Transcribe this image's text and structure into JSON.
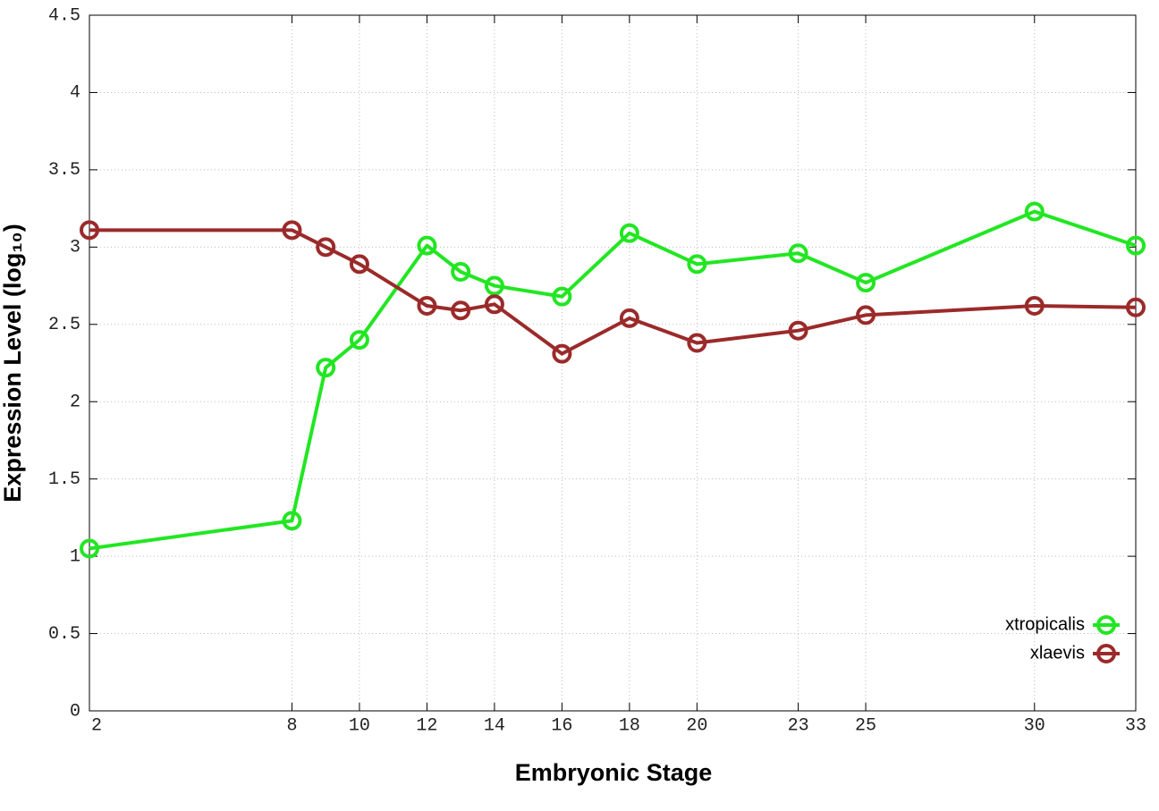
{
  "chart_data": {
    "type": "line",
    "x_label": "Embryonic Stage",
    "y_label": "Expression Level (log₁₀)",
    "x": [
      2,
      8,
      9,
      10,
      12,
      13,
      14,
      16,
      18,
      20,
      23,
      25,
      30,
      33
    ],
    "series": [
      {
        "name": "xtropicalis",
        "color": "#22e622",
        "values": [
          1.05,
          1.23,
          2.22,
          2.4,
          3.01,
          2.84,
          2.75,
          2.68,
          3.09,
          2.89,
          2.96,
          2.77,
          3.23,
          3.01
        ]
      },
      {
        "name": "xlaevis",
        "color": "#9b2a2a",
        "values": [
          3.11,
          3.11,
          3.0,
          2.89,
          2.62,
          2.59,
          2.63,
          2.31,
          2.54,
          2.38,
          2.46,
          2.56,
          2.62,
          2.61
        ]
      }
    ],
    "xlim": [
      2,
      33
    ],
    "xticks": [
      2,
      8,
      10,
      12,
      14,
      16,
      18,
      20,
      23,
      25,
      30,
      33
    ],
    "ylim": [
      0,
      4.5
    ],
    "yticks": [
      0,
      0.5,
      1,
      1.5,
      2,
      2.5,
      3,
      3.5,
      4,
      4.5
    ],
    "grid": true,
    "legend": "lower right"
  }
}
